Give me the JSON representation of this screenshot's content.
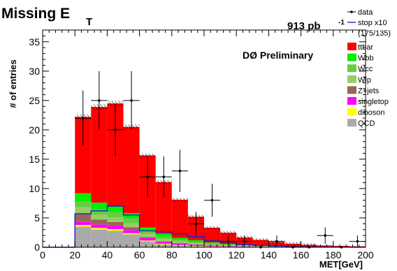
{
  "chart_data": {
    "type": "bar",
    "stacked": true,
    "title": "Missing E",
    "title_subscript": "T",
    "luminosity": "913 pb",
    "luminosity_exponent": "-1",
    "annotation": "DØ Preliminary",
    "xlabel": "MET[GeV]",
    "ylabel": "# of entries",
    "xlim": [
      0,
      200
    ],
    "ylim": [
      0,
      37
    ],
    "x_ticks": [
      0,
      20,
      40,
      60,
      80,
      100,
      120,
      140,
      160,
      180,
      200
    ],
    "y_ticks": [
      0,
      5,
      10,
      15,
      20,
      25,
      30,
      35
    ],
    "grid": false,
    "legend_position": "right-top",
    "bin_edges": [
      20,
      30,
      40,
      50,
      60,
      70,
      80,
      90,
      100,
      110,
      120,
      130,
      140,
      150,
      160,
      170,
      180,
      190,
      200
    ],
    "series": [
      {
        "name": "QCD",
        "color": "#aaaaaa",
        "values": [
          3.5,
          3.0,
          2.8,
          2.2,
          1.0,
          0.5,
          0.3,
          0.2,
          0.1,
          0.05,
          0.05,
          0.03,
          0.02,
          0,
          0,
          0,
          0,
          0
        ]
      },
      {
        "name": "diboson",
        "color": "#ffff00",
        "values": [
          0.3,
          0.3,
          0.3,
          0.2,
          0.15,
          0.1,
          0.1,
          0.05,
          0.05,
          0.05,
          0.02,
          0.02,
          0,
          0,
          0,
          0,
          0,
          0
        ]
      },
      {
        "name": "singletop",
        "color": "#ff00ff",
        "values": [
          0.5,
          0.6,
          0.6,
          0.5,
          0.4,
          0.3,
          0.25,
          0.2,
          0.15,
          0.1,
          0.08,
          0.05,
          0.04,
          0.03,
          0.02,
          0.02,
          0.01,
          0.01
        ]
      },
      {
        "name": "Z+jets",
        "color": "#996655",
        "values": [
          1.5,
          0.8,
          0.6,
          0.5,
          0.2,
          0.1,
          0.05,
          0.05,
          0.02,
          0.02,
          0,
          0,
          0,
          0,
          0,
          0,
          0,
          0
        ]
      },
      {
        "name": "Wlp",
        "color": "#99cc66",
        "values": [
          1.0,
          0.8,
          0.8,
          0.7,
          0.5,
          0.4,
          0.3,
          0.2,
          0.15,
          0.1,
          0.05,
          0.05,
          0.03,
          0.02,
          0.01,
          0.01,
          0.01,
          0
        ]
      },
      {
        "name": "Wcc",
        "color": "#66cc44",
        "values": [
          1.0,
          0.9,
          0.9,
          0.8,
          0.5,
          0.4,
          0.3,
          0.2,
          0.15,
          0.1,
          0.07,
          0.05,
          0.03,
          0.02,
          0.01,
          0.01,
          0,
          0
        ]
      },
      {
        "name": "Wbb",
        "color": "#00ee00",
        "values": [
          1.4,
          1.2,
          1.0,
          0.9,
          0.6,
          0.5,
          0.3,
          0.3,
          0.2,
          0.15,
          0.1,
          0.05,
          0.05,
          0.03,
          0.02,
          0.01,
          0.01,
          0
        ]
      },
      {
        "name": "ttbar",
        "color": "#ff0000",
        "values": [
          13.0,
          16.3,
          17.5,
          14.7,
          12.3,
          8.8,
          6.5,
          4.0,
          2.5,
          1.9,
          1.3,
          1.0,
          0.7,
          0.5,
          0.35,
          0.25,
          0.2,
          0.15
        ]
      }
    ],
    "stop_x10": {
      "name": "stop x10",
      "subname": "(175/135)",
      "color": "#1e1ec8",
      "values": [
        5.7,
        6.2,
        7.0,
        5.5,
        2.8,
        2.6,
        2.3,
        1.8,
        1.1,
        0.7,
        0.5,
        0.3,
        0.2,
        0.1,
        0.05,
        0.03,
        0.02,
        0.01
      ]
    },
    "data": {
      "name": "data",
      "x": [
        25,
        35,
        45,
        55,
        65,
        75,
        85,
        95,
        105,
        115,
        125,
        135,
        145,
        155,
        165,
        175,
        185,
        195
      ],
      "y": [
        22,
        25,
        20,
        25,
        12,
        12,
        13,
        4,
        8,
        1,
        1,
        0,
        1,
        0,
        0,
        2,
        0,
        1
      ],
      "err": [
        4.7,
        5.0,
        4.5,
        5.0,
        3.5,
        3.5,
        3.6,
        2.0,
        2.8,
        1.0,
        1.0,
        0,
        1.0,
        0,
        0,
        1.4,
        0,
        1.0
      ]
    },
    "legend_order": [
      "data",
      "stop x10",
      "ttbar",
      "Wbb",
      "Wcc",
      "Wlp",
      "Z+jets",
      "singletop",
      "diboson",
      "QCD"
    ]
  }
}
